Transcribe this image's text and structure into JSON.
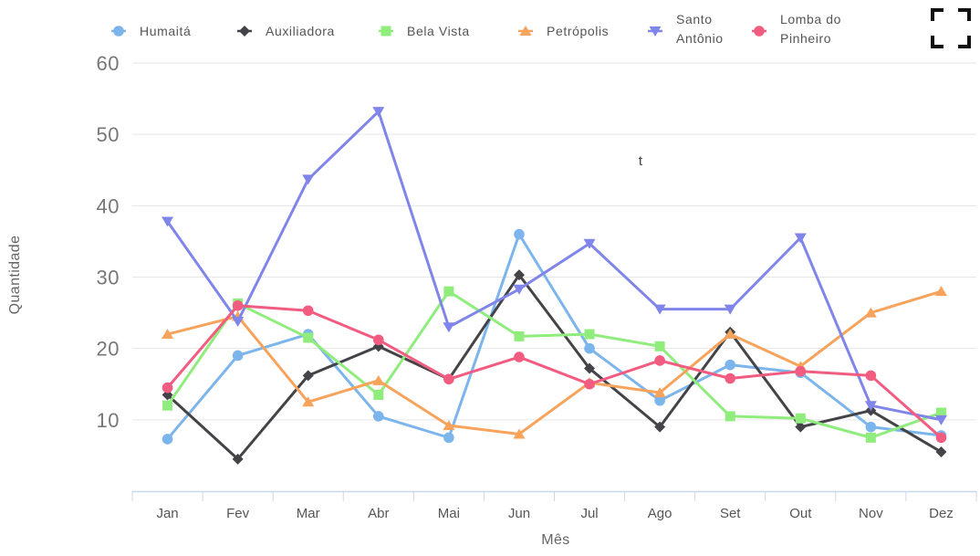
{
  "chart_data": {
    "type": "line",
    "title": "",
    "xlabel": "Mês",
    "ylabel": "Quantidade",
    "annotation": "t",
    "categories": [
      "Jan",
      "Fev",
      "Mar",
      "Abr",
      "Mai",
      "Jun",
      "Jul",
      "Ago",
      "Set",
      "Out",
      "Nov",
      "Dez"
    ],
    "y_ticks": [
      10,
      20,
      30,
      40,
      50,
      60
    ],
    "ylim": [
      0,
      60
    ],
    "grid": true,
    "legend_position": "top",
    "series": [
      {
        "name": "Humaitá",
        "legend_lines": [
          "Humaitá"
        ],
        "color": "#7cb5ec",
        "marker": "circle",
        "values": [
          7.3,
          19,
          22,
          10.5,
          7.5,
          36,
          20,
          12.7,
          17.7,
          16.6,
          9,
          7.8
        ]
      },
      {
        "name": "Auxiliadora",
        "legend_lines": [
          "Auxiliadora"
        ],
        "color": "#434348",
        "marker": "diamond",
        "values": [
          13.5,
          4.5,
          16.2,
          20.3,
          15.7,
          30.3,
          17.2,
          9,
          22.3,
          9,
          11.3,
          5.5
        ]
      },
      {
        "name": "Bela Vista",
        "legend_lines": [
          "Bela Vista"
        ],
        "color": "#90ed7d",
        "marker": "square",
        "values": [
          12,
          26.3,
          21.5,
          13.5,
          28,
          21.7,
          22,
          20.3,
          10.5,
          10.2,
          7.5,
          11
        ]
      },
      {
        "name": "Petrópolis",
        "legend_lines": [
          "Petrópolis"
        ],
        "color": "#f7a35c",
        "marker": "triangle",
        "values": [
          22,
          24.5,
          12.5,
          15.5,
          9.2,
          8,
          15.2,
          13.8,
          22,
          17.5,
          25,
          28
        ]
      },
      {
        "name": "Santo Antônio",
        "legend_lines": [
          "Santo",
          "Antônio"
        ],
        "color": "#8085e9",
        "marker": "triangle-down",
        "values": [
          37.8,
          23.8,
          43.7,
          53.2,
          23,
          28.3,
          34.7,
          25.5,
          25.5,
          35.5,
          12,
          10
        ]
      },
      {
        "name": "Lomba do Pinheiro",
        "legend_lines": [
          "Lomba do",
          "Pinheiro"
        ],
        "color": "#f15c80",
        "marker": "circle",
        "values": [
          14.5,
          26,
          25.3,
          21.2,
          15.7,
          18.8,
          15,
          18.3,
          15.8,
          16.8,
          16.2,
          7.5
        ]
      }
    ]
  },
  "icons": {
    "fullscreen": "fullscreen-icon"
  }
}
